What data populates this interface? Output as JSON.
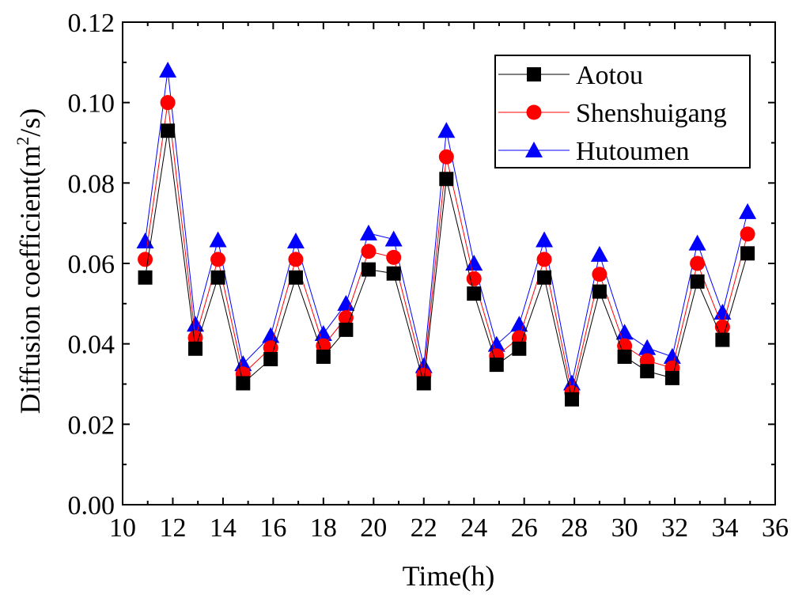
{
  "chart_data": {
    "type": "line",
    "xlabel": "Time(h)",
    "ylabel": {
      "main": "Diffusion coefficient(m",
      "superscript": "2",
      "tail": "/s)"
    },
    "xlim": [
      10,
      36
    ],
    "ylim": [
      0,
      0.12
    ],
    "x_ticks": [
      "10",
      "12",
      "14",
      "16",
      "18",
      "20",
      "22",
      "24",
      "26",
      "28",
      "30",
      "32",
      "34",
      "36"
    ],
    "y_ticks": [
      "0.00",
      "0.02",
      "0.04",
      "0.06",
      "0.08",
      "0.10",
      "0.12"
    ],
    "legend_position": "top-right",
    "grid": false,
    "x": [
      10.9,
      11.8,
      12.9,
      13.8,
      14.8,
      15.9,
      16.9,
      18.0,
      18.9,
      19.8,
      20.8,
      22.0,
      22.9,
      24.0,
      24.9,
      25.8,
      26.8,
      27.9,
      29.0,
      30.0,
      30.9,
      31.9,
      32.9,
      33.9,
      34.9
    ],
    "series": [
      {
        "name": "Aotou",
        "color": "#000000",
        "marker": "square",
        "values": [
          0.0565,
          0.093,
          0.0388,
          0.0565,
          0.0302,
          0.0362,
          0.0565,
          0.0368,
          0.0435,
          0.0585,
          0.0575,
          0.0302,
          0.081,
          0.0525,
          0.0348,
          0.0388,
          0.0565,
          0.0262,
          0.053,
          0.0368,
          0.0332,
          0.0315,
          0.0555,
          0.041,
          0.0625
        ]
      },
      {
        "name": "Shenshuigang",
        "color": "#ff0000",
        "marker": "circle",
        "values": [
          0.061,
          0.1,
          0.0415,
          0.061,
          0.0325,
          0.039,
          0.061,
          0.0395,
          0.0465,
          0.063,
          0.0615,
          0.0322,
          0.0865,
          0.0562,
          0.037,
          0.0415,
          0.061,
          0.0278,
          0.0573,
          0.0395,
          0.0358,
          0.034,
          0.06,
          0.0442,
          0.0673
        ]
      },
      {
        "name": "Hutoumen",
        "color": "#0000ff",
        "marker": "triangle",
        "values": [
          0.0655,
          0.108,
          0.0448,
          0.0658,
          0.035,
          0.042,
          0.0655,
          0.0425,
          0.05,
          0.0675,
          0.066,
          0.0345,
          0.093,
          0.06,
          0.0398,
          0.0448,
          0.0658,
          0.0302,
          0.0622,
          0.0428,
          0.039,
          0.0368,
          0.065,
          0.0478,
          0.0728
        ]
      }
    ]
  }
}
